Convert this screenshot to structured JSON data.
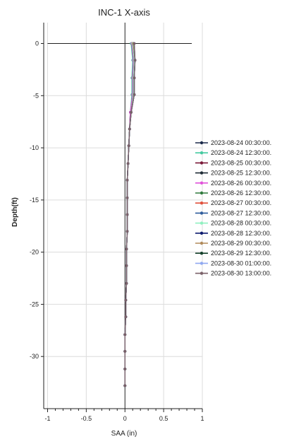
{
  "chart_data": {
    "type": "line",
    "title": "INC-1 X-axis",
    "xlabel": "SAA (in)",
    "ylabel": "Depth(ft)",
    "xlim": [
      -1.05,
      1.0
    ],
    "ylim": [
      -35.0,
      2.0
    ],
    "xticks": [
      -1,
      -0.5,
      0,
      0.5,
      1
    ],
    "xtick_labels": [
      "-1",
      "-0.5",
      "0",
      "0.5",
      "1"
    ],
    "yticks": [
      0,
      -5,
      -10,
      -15,
      -20,
      -25,
      -30
    ],
    "ytick_labels": [
      "0",
      "-5",
      "-10",
      "-15",
      "-20",
      "-25",
      "-30"
    ],
    "grid": true,
    "legend_position": "right",
    "depths": [
      0,
      -1.6,
      -3.3,
      -4.9,
      -6.6,
      -8.2,
      -9.8,
      -11.5,
      -13.1,
      -14.8,
      -16.4,
      -18.0,
      -19.7,
      -21.3,
      -23.0,
      -24.6,
      -26.2,
      -27.9,
      -29.5,
      -31.2,
      -32.8
    ],
    "series": [
      {
        "name": "2023-08-24 00:30:00.",
        "color": "#1b2a4a",
        "values": [
          0.09,
          0.11,
          0.1,
          0.1,
          0.07,
          0.06,
          0.05,
          0.04,
          0.03,
          0.03,
          0.03,
          0.03,
          0.02,
          0.02,
          0.02,
          0.01,
          0.01,
          0.0,
          0.0,
          0.0,
          0.0
        ]
      },
      {
        "name": "2023-08-24 12:30:00.",
        "color": "#45c9a0",
        "values": [
          0.08,
          0.1,
          0.09,
          0.09,
          0.07,
          0.06,
          0.05,
          0.04,
          0.03,
          0.03,
          0.03,
          0.03,
          0.02,
          0.02,
          0.02,
          0.01,
          0.01,
          0.0,
          0.0,
          0.0,
          0.0
        ]
      },
      {
        "name": "2023-08-25 00:30:00.",
        "color": "#7a1838",
        "values": [
          0.09,
          0.11,
          0.1,
          0.1,
          0.07,
          0.06,
          0.05,
          0.04,
          0.03,
          0.03,
          0.03,
          0.03,
          0.02,
          0.02,
          0.02,
          0.01,
          0.01,
          0.0,
          0.0,
          0.0,
          0.0
        ]
      },
      {
        "name": "2023-08-25 12:30:00.",
        "color": "#1e2a35",
        "values": [
          0.1,
          0.12,
          0.11,
          0.11,
          0.08,
          0.06,
          0.05,
          0.04,
          0.03,
          0.03,
          0.03,
          0.03,
          0.02,
          0.02,
          0.02,
          0.01,
          0.01,
          0.0,
          0.0,
          0.0,
          0.0
        ]
      },
      {
        "name": "2023-08-26 00:30:00.",
        "color": "#e052d9",
        "values": [
          0.09,
          0.11,
          0.1,
          0.1,
          0.07,
          0.06,
          0.05,
          0.04,
          0.03,
          0.03,
          0.03,
          0.03,
          0.02,
          0.02,
          0.02,
          0.01,
          0.01,
          0.0,
          0.0,
          0.0,
          0.0
        ]
      },
      {
        "name": "2023-08-26 12:30:00.",
        "color": "#2f7a3c",
        "values": [
          0.1,
          0.12,
          0.11,
          0.11,
          0.08,
          0.06,
          0.05,
          0.04,
          0.03,
          0.03,
          0.03,
          0.03,
          0.02,
          0.02,
          0.02,
          0.01,
          0.01,
          0.0,
          0.0,
          0.0,
          0.0
        ]
      },
      {
        "name": "2023-08-27 00:30:00.",
        "color": "#e0503c",
        "values": [
          0.1,
          0.12,
          0.11,
          0.11,
          0.08,
          0.06,
          0.05,
          0.04,
          0.03,
          0.03,
          0.03,
          0.03,
          0.02,
          0.02,
          0.02,
          0.01,
          0.01,
          0.0,
          0.0,
          0.0,
          0.0
        ]
      },
      {
        "name": "2023-08-27 12:30:00.",
        "color": "#2e5c9c",
        "values": [
          0.11,
          0.13,
          0.12,
          0.12,
          0.08,
          0.06,
          0.05,
          0.04,
          0.03,
          0.03,
          0.03,
          0.03,
          0.02,
          0.02,
          0.02,
          0.01,
          0.01,
          0.0,
          0.0,
          0.0,
          0.0
        ]
      },
      {
        "name": "2023-08-28 00:30:00.",
        "color": "#8ff0c0",
        "values": [
          0.1,
          0.12,
          0.11,
          0.11,
          0.08,
          0.06,
          0.05,
          0.04,
          0.03,
          0.03,
          0.03,
          0.03,
          0.02,
          0.02,
          0.02,
          0.01,
          0.01,
          0.0,
          0.0,
          0.0,
          0.0
        ]
      },
      {
        "name": "2023-08-28 12:30:00.",
        "color": "#0c1a6e",
        "values": [
          0.11,
          0.13,
          0.12,
          0.12,
          0.08,
          0.06,
          0.05,
          0.04,
          0.03,
          0.03,
          0.03,
          0.03,
          0.02,
          0.02,
          0.02,
          0.01,
          0.01,
          0.0,
          0.0,
          0.0,
          0.0
        ]
      },
      {
        "name": "2023-08-29 00:30:00.",
        "color": "#b08a5a",
        "values": [
          0.11,
          0.13,
          0.12,
          0.12,
          0.08,
          0.06,
          0.05,
          0.04,
          0.03,
          0.03,
          0.03,
          0.03,
          0.02,
          0.02,
          0.02,
          0.01,
          0.01,
          0.0,
          0.0,
          0.0,
          0.0
        ]
      },
      {
        "name": "2023-08-29 12:30:00.",
        "color": "#14402a",
        "values": [
          0.12,
          0.13,
          0.12,
          0.12,
          0.08,
          0.06,
          0.05,
          0.04,
          0.03,
          0.03,
          0.03,
          0.03,
          0.02,
          0.02,
          0.02,
          0.01,
          0.01,
          0.0,
          0.0,
          0.0,
          0.0
        ]
      },
      {
        "name": "2023-08-30 01:00:00.",
        "color": "#8fa8f0",
        "values": [
          0.12,
          0.13,
          0.12,
          0.12,
          0.08,
          0.06,
          0.05,
          0.04,
          0.03,
          0.03,
          0.03,
          0.03,
          0.02,
          0.02,
          0.02,
          0.01,
          0.01,
          0.0,
          0.0,
          0.0,
          0.0
        ]
      },
      {
        "name": "2023-08-30 13:00:00.",
        "color": "#7a6068",
        "values": [
          0.12,
          0.13,
          0.12,
          0.12,
          0.08,
          0.06,
          0.05,
          0.04,
          0.03,
          0.03,
          0.03,
          0.03,
          0.02,
          0.02,
          0.02,
          0.01,
          0.01,
          0.0,
          0.0,
          0.0,
          0.0
        ]
      }
    ]
  }
}
